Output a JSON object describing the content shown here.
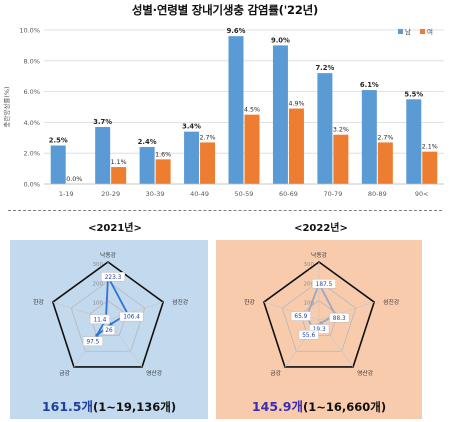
{
  "page": {
    "title": "성별·연령별 장내기생충 감염률('22년)"
  },
  "chart_data": [
    {
      "type": "bar",
      "ylabel": "충란양성률(%)",
      "ylim": [
        0,
        10
      ],
      "yticks": [
        "0.0%",
        "2.0%",
        "4.0%",
        "6.0%",
        "8.0%",
        "10.0%"
      ],
      "grid": true,
      "legend_position": "top-right",
      "categories": [
        "1-19",
        "20-29",
        "30-39",
        "40-49",
        "50-59",
        "60-69",
        "70-79",
        "80-89",
        "90<"
      ],
      "series": [
        {
          "name": "남",
          "color": "#5b9bd5",
          "values": [
            2.5,
            3.7,
            2.4,
            3.4,
            9.6,
            9.0,
            7.2,
            6.1,
            5.5
          ],
          "labels": [
            "2.5%",
            "3.7%",
            "2.4%",
            "3.4%",
            "9.6%",
            "9.0%",
            "7.2%",
            "6.1%",
            "5.5%"
          ]
        },
        {
          "name": "여",
          "color": "#ed7d31",
          "values": [
            0.0,
            1.1,
            1.6,
            2.7,
            4.5,
            4.9,
            3.2,
            2.7,
            2.1
          ],
          "labels": [
            "0.0%",
            "1.1%",
            "1.6%",
            "2.7%",
            "4.5%",
            "4.9%",
            "3.2%",
            "2.7%",
            "2.1%"
          ]
        }
      ]
    },
    {
      "type": "radar",
      "heading": "<2021년>",
      "axes": [
        "낙동강",
        "섬진강",
        "영산강",
        "금강",
        "한강"
      ],
      "rmax": 300,
      "ring_labels": [
        "300",
        "200",
        "100"
      ],
      "values": [
        223.3,
        106.4,
        26,
        97.5,
        11.4
      ],
      "value_labels": [
        "223.3",
        "106.4",
        "26",
        "97.5",
        "11.4"
      ],
      "line_color": "#2e75d6",
      "summary_big": "161.5개",
      "summary_rest": "(1~19,136개)"
    },
    {
      "type": "radar",
      "heading": "<2022년>",
      "axes": [
        "낙동강",
        "섬진강",
        "영산강",
        "금강",
        "한강"
      ],
      "rmax": 300,
      "ring_labels": [
        "300",
        "200",
        "100"
      ],
      "values": [
        187.5,
        88.3,
        19.3,
        55.6,
        65.9
      ],
      "value_labels": [
        "187.5",
        "88.3",
        "19.3",
        "55.6",
        "65.9"
      ],
      "line_color": "#9aa7c2",
      "summary_big": "145.9개",
      "summary_rest": "(1~16,660개)"
    }
  ]
}
